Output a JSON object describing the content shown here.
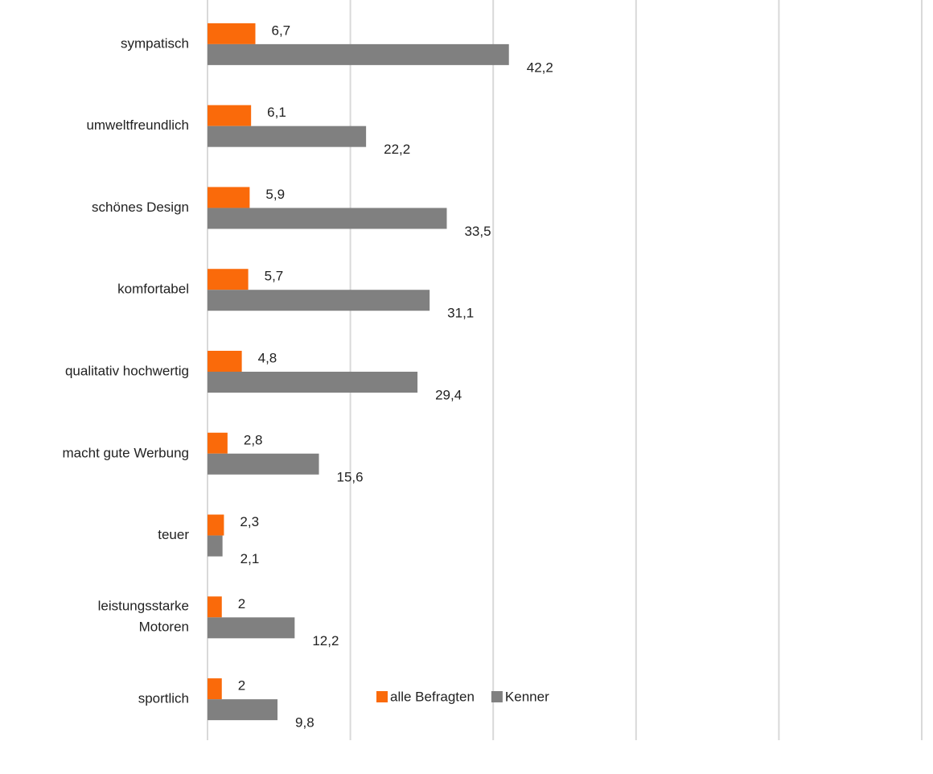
{
  "chart_data": {
    "type": "bar",
    "orientation": "horizontal",
    "categories": [
      "sympatisch",
      "umweltfreundlich",
      "schönes Design",
      "komfortabel",
      "qualitativ hochwertig",
      "macht gute Werbung",
      "teuer",
      "leistungsstarke\nMotoren",
      "sportlich"
    ],
    "series": [
      {
        "name": "alle Befragten",
        "color": "#fa6a0a",
        "values": [
          6.7,
          6.1,
          5.9,
          5.7,
          4.8,
          2.8,
          2.3,
          2,
          2
        ],
        "value_labels": [
          "6,7",
          "6,1",
          "5,9",
          "5,7",
          "4,8",
          "2,8",
          "2,3",
          "2",
          "2"
        ]
      },
      {
        "name": "Kenner",
        "color": "#808080",
        "values": [
          42.2,
          22.2,
          33.5,
          31.1,
          29.4,
          15.6,
          2.1,
          12.2,
          9.8
        ],
        "value_labels": [
          "42,2",
          "22,2",
          "33,5",
          "31,1",
          "29,4",
          "15,6",
          "2,1",
          "12,2",
          "9,8"
        ]
      }
    ],
    "xlim": [
      0,
      100
    ],
    "xticks": [
      0,
      20,
      40,
      60,
      80,
      100
    ],
    "grid": true,
    "legend": "bottom"
  }
}
